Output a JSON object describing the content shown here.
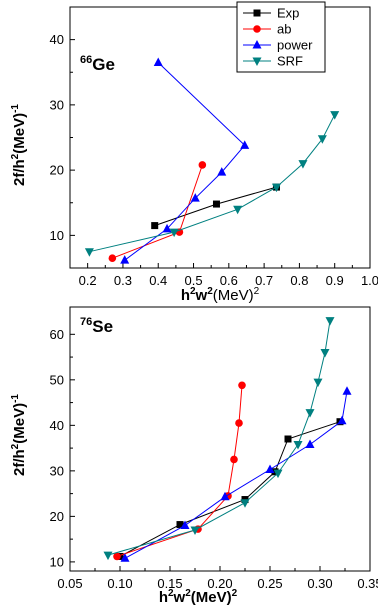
{
  "chart_data": [
    {
      "type": "line",
      "element_label": {
        "mass": "66",
        "symbol": "Ge"
      },
      "ylabel": {
        "pre": "2f/h",
        "sup1": "2",
        "mid": "(MeV)",
        "sup2": "-1"
      },
      "xlabel": {
        "pre": "h",
        "sup1": "2",
        "mid": "w",
        "sup2": "2",
        "unit": "(MeV)",
        "sup3": "2"
      },
      "xlim": [
        0.15,
        1.0
      ],
      "ylim": [
        5,
        45
      ],
      "xticks": [
        0.2,
        0.3,
        0.4,
        0.5,
        0.6,
        0.7,
        0.8,
        0.9,
        1.0
      ],
      "xtick_labels": [
        "0.2",
        "0.3",
        "0.4",
        "0.5",
        "0.6",
        "0.7",
        "0.8",
        "0.9",
        "1.0"
      ],
      "yticks": [
        10,
        20,
        30,
        40
      ],
      "ytick_labels": [
        "10",
        "20",
        "30",
        "40"
      ],
      "legend": {
        "position": "top-right"
      },
      "series": [
        {
          "name": "Exp",
          "color": "#000000",
          "marker": "square",
          "x": [
            0.39,
            0.565,
            0.735
          ],
          "y": [
            11.5,
            14.8,
            17.4
          ]
        },
        {
          "name": "ab",
          "color": "#ff0000",
          "marker": "circle",
          "x": [
            0.27,
            0.46,
            0.525
          ],
          "y": [
            6.5,
            10.5,
            20.8
          ]
        },
        {
          "name": "power",
          "color": "#0000ff",
          "marker": "triangle-up",
          "x": [
            0.305,
            0.425,
            0.505,
            0.58,
            0.645,
            0.4
          ],
          "y": [
            6.2,
            11.0,
            15.7,
            19.7,
            23.8,
            36.5
          ]
        },
        {
          "name": "SRF",
          "color": "#008080",
          "marker": "triangle-down",
          "x": [
            0.205,
            0.445,
            0.625,
            0.735,
            0.81,
            0.865,
            0.9
          ],
          "y": [
            7.5,
            10.5,
            14.0,
            17.4,
            21.0,
            24.8,
            28.5
          ]
        }
      ]
    },
    {
      "type": "line",
      "element_label": {
        "mass": "76",
        "symbol": "Se"
      },
      "ylabel": {
        "pre": "2f/h",
        "sup1": "2",
        "mid": "(MeV)",
        "sup2": "-1"
      },
      "xlabel": {
        "pre": "h",
        "sup1": "2",
        "mid": "w",
        "sup2": "2",
        "unit": "(MeV)",
        "sup3": "2"
      },
      "xlim": [
        0.05,
        0.35
      ],
      "ylim": [
        8,
        66
      ],
      "xticks": [
        0.05,
        0.1,
        0.15,
        0.2,
        0.25,
        0.3,
        0.35
      ],
      "xtick_labels": [
        "0.05",
        "0.10",
        "0.15",
        "0.20",
        "0.25",
        "0.30",
        "0.35"
      ],
      "yticks": [
        10,
        20,
        30,
        40,
        50,
        60
      ],
      "ytick_labels": [
        "10",
        "20",
        "30",
        "40",
        "50",
        "60"
      ],
      "series": [
        {
          "name": "Exp",
          "color": "#000000",
          "marker": "square",
          "x": [
            0.1,
            0.16,
            0.225,
            0.255,
            0.268,
            0.32
          ],
          "y": [
            11.2,
            18.2,
            23.7,
            29.8,
            37.0,
            40.8
          ]
        },
        {
          "name": "ab",
          "color": "#ff0000",
          "marker": "circle",
          "x": [
            0.097,
            0.178,
            0.208,
            0.214,
            0.219,
            0.222
          ],
          "y": [
            11.2,
            17.2,
            24.5,
            32.5,
            40.5,
            48.8
          ]
        },
        {
          "name": "power",
          "color": "#0000ff",
          "marker": "triangle-up",
          "x": [
            0.105,
            0.165,
            0.205,
            0.25,
            0.29,
            0.322,
            0.327
          ],
          "y": [
            10.8,
            18.0,
            24.3,
            30.3,
            35.8,
            41.0,
            47.5
          ]
        },
        {
          "name": "SRF",
          "color": "#008080",
          "marker": "triangle-down",
          "x": [
            0.088,
            0.175,
            0.225,
            0.258,
            0.278,
            0.29,
            0.298,
            0.305,
            0.31
          ],
          "y": [
            11.5,
            17.0,
            23.0,
            29.5,
            35.8,
            42.8,
            49.5,
            56.0,
            63.0
          ]
        }
      ]
    }
  ]
}
